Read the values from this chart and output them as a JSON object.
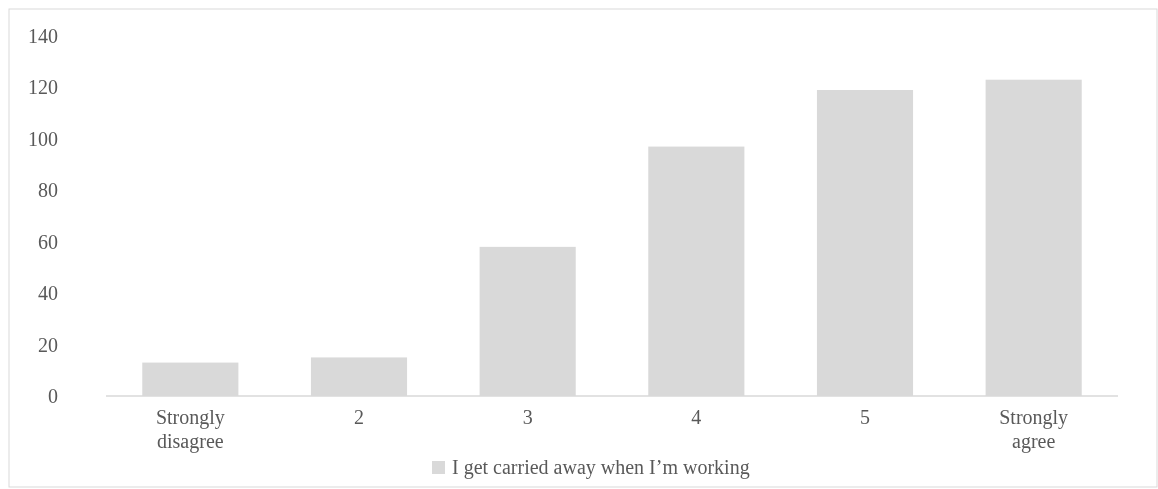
{
  "chart_data": {
    "type": "bar",
    "categories": [
      "Strongly disagree",
      "2",
      "3",
      "4",
      "5",
      "Strongly agree"
    ],
    "series": [
      {
        "name": "I get carried away when I’m working",
        "color": "#d9d9d9",
        "values": [
          13,
          15,
          58,
          97,
          119,
          123
        ]
      }
    ],
    "ylim": [
      0,
      140
    ],
    "yticks": [
      0,
      20,
      40,
      60,
      80,
      100,
      120,
      140
    ],
    "grid": false,
    "legend": "bottom"
  }
}
